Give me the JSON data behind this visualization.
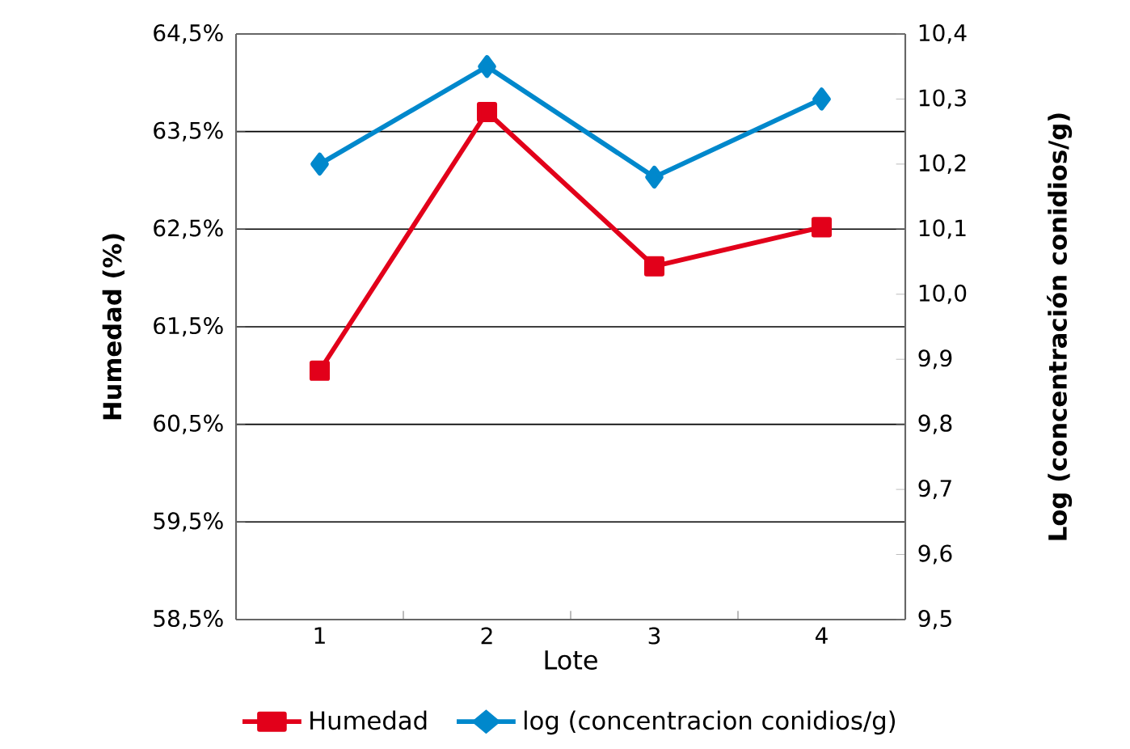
{
  "chart_data": {
    "type": "line",
    "xlabel": "Lote",
    "ylabel": "Humedad (%)",
    "y2label": "Log (concentración conidios/g)",
    "categories": [
      "1",
      "2",
      "3",
      "4"
    ],
    "series": [
      {
        "name": "Humedad",
        "color": "#e2001a",
        "marker": "square",
        "values": [
          61.05,
          63.7,
          62.12,
          62.52
        ]
      },
      {
        "name": "log (concentracion conidios/g)",
        "color": "#0088cc",
        "marker": "diamond",
        "axis": "y2",
        "values": [
          10.2,
          10.35,
          10.18,
          10.3
        ]
      }
    ],
    "ylim": [
      58.5,
      64.5
    ],
    "yticks": [
      {
        "value": 58.5,
        "label": "58,5%"
      },
      {
        "value": 59.5,
        "label": "59,5%"
      },
      {
        "value": 60.5,
        "label": "60,5%"
      },
      {
        "value": 61.5,
        "label": "61,5%"
      },
      {
        "value": 62.5,
        "label": "62,5%"
      },
      {
        "value": 63.5,
        "label": "63,5%"
      },
      {
        "value": 64.5,
        "label": "64,5%"
      }
    ],
    "y2lim": [
      9.5,
      10.4
    ],
    "y2ticks": [
      {
        "value": 9.5,
        "label": "9,5"
      },
      {
        "value": 9.6,
        "label": "9,6"
      },
      {
        "value": 9.7,
        "label": "9,7"
      },
      {
        "value": 9.8,
        "label": "9,8"
      },
      {
        "value": 9.9,
        "label": "9,9"
      },
      {
        "value": 10.0,
        "label": "10,0"
      },
      {
        "value": 10.1,
        "label": "10,1"
      },
      {
        "value": 10.2,
        "label": "10,2"
      },
      {
        "value": 10.3,
        "label": "10,3"
      },
      {
        "value": 10.4,
        "label": "10,4"
      }
    ],
    "grid": "y",
    "legend": "bottom",
    "line_style": "solid"
  }
}
